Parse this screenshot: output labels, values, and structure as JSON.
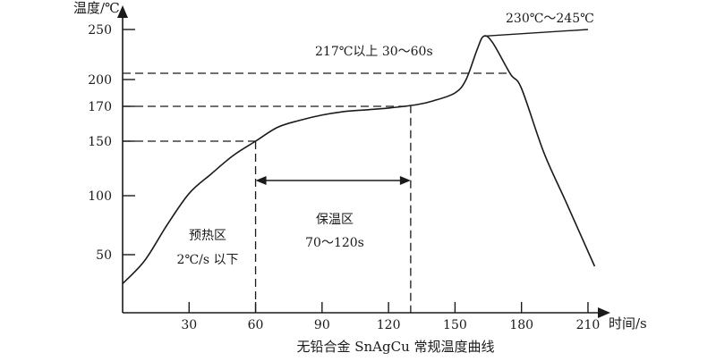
{
  "chart_data": {
    "type": "line",
    "title": "无铅合金 SnAgCu 常规温度曲线",
    "xlabel": "时间/s",
    "ylabel": "温度/℃",
    "xlim": [
      0,
      215
    ],
    "ylim": [
      0,
      260
    ],
    "x_ticks": [
      30,
      60,
      90,
      120,
      150,
      180,
      210
    ],
    "y_ticks": [
      50,
      100,
      150,
      170,
      200,
      250
    ],
    "grid": false,
    "color": "#1a1a1a",
    "series": [
      {
        "x": [
          0,
          10,
          20,
          30,
          40,
          50,
          60,
          70,
          80,
          90,
          100,
          110,
          120,
          133,
          140,
          150,
          155,
          160,
          163,
          167,
          175,
          180,
          190,
          200,
          213
        ],
        "y": [
          25,
          45,
          75,
          102,
          120,
          137,
          150,
          158,
          162,
          165,
          167,
          168,
          169,
          172,
          176,
          185,
          200,
          235,
          245,
          240,
          215,
          190,
          140,
          95,
          40
        ]
      }
    ],
    "peak_line": {
      "x": [
        163,
        210
      ],
      "y": [
        245,
        250
      ]
    },
    "reference_lines": [
      {
        "y": 217,
        "x_end": 175
      },
      {
        "y": 170,
        "x_end": 130
      },
      {
        "y": 150,
        "x_end": 60
      }
    ],
    "vertical_lines": [
      60,
      130
    ],
    "annotations": {
      "peak": "230℃～245℃",
      "above_217": "217℃以上 30～60s",
      "preheat_title": "预热区",
      "preheat_rate": "2℃/s 以下",
      "soak_title": "保温区",
      "soak_time": "70～120s"
    }
  }
}
